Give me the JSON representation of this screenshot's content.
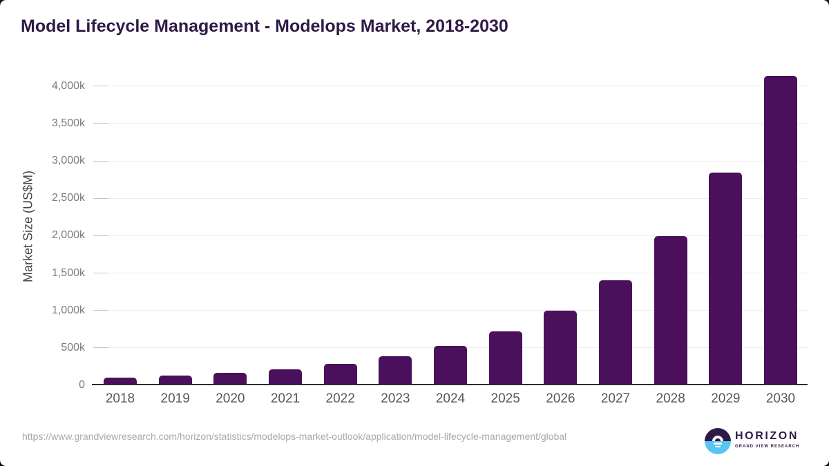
{
  "page": {
    "title": "Model Lifecycle Management - Modelops Market, 2018-2030",
    "source_url": "https://www.grandviewresearch.com/horizon/statistics/modelops-market-outlook/application/model-lifecycle-management/global"
  },
  "logo": {
    "name": "HORIZON",
    "subtitle": "GRAND VIEW RESEARCH"
  },
  "colors": {
    "bar": "#4a105c",
    "title_text": "#2f1a45",
    "axis_line": "#2d2d2d",
    "gridline": "#ededed",
    "tick_dash": "#c5c5c5",
    "y_label_text": "#7b7b7b",
    "x_label_text": "#575757",
    "url_text": "#a8a8a8",
    "logo_dark": "#2e1a47",
    "logo_blue": "#58c5f1"
  },
  "chart_data": {
    "type": "bar",
    "title": "Model Lifecycle Management - Modelops Market, 2018-2030",
    "xlabel": "",
    "ylabel": "Market Size (US$M)",
    "categories": [
      "2018",
      "2019",
      "2020",
      "2021",
      "2022",
      "2023",
      "2024",
      "2025",
      "2026",
      "2027",
      "2028",
      "2029",
      "2030"
    ],
    "values": [
      100,
      130,
      165,
      210,
      285,
      390,
      525,
      720,
      1000,
      1400,
      1990,
      2845,
      4135
    ],
    "value_unit": "k (thousands of US$M), estimated from axis",
    "y_ticks": [
      {
        "value": 0,
        "label": "0"
      },
      {
        "value": 500,
        "label": "500k"
      },
      {
        "value": 1000,
        "label": "1,000k"
      },
      {
        "value": 1500,
        "label": "1,500k"
      },
      {
        "value": 2000,
        "label": "2,000k"
      },
      {
        "value": 2500,
        "label": "2,500k"
      },
      {
        "value": 3000,
        "label": "3,000k"
      },
      {
        "value": 3500,
        "label": "3,500k"
      },
      {
        "value": 4000,
        "label": "4,000k"
      }
    ],
    "ylim": [
      0,
      4228
    ],
    "grid": "horizontal-light",
    "legend": "none",
    "bar_corner": "rounded-top"
  }
}
